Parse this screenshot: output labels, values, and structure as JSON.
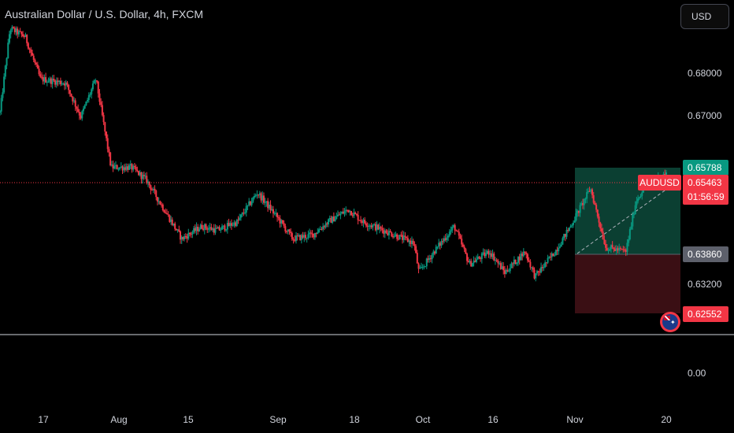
{
  "header": {
    "title": "Australian Dollar / U.S. Dollar, 4h, FXCM"
  },
  "currency_button": {
    "label": "USD"
  },
  "price_axis": {
    "labels": [
      {
        "text": "0.68000",
        "value": 0.68
      },
      {
        "text": "0.67000",
        "value": 0.67
      },
      {
        "text": "0.63200",
        "value": 0.632
      },
      {
        "text": "0.00",
        "value": 0.0
      }
    ]
  },
  "time_axis": {
    "labels": [
      {
        "text": "17"
      },
      {
        "text": "Aug"
      },
      {
        "text": "15"
      },
      {
        "text": "Sep"
      },
      {
        "text": "18"
      },
      {
        "text": "Oct"
      },
      {
        "text": "16"
      },
      {
        "text": "Nov"
      },
      {
        "text": "20"
      }
    ]
  },
  "position": {
    "take_profit": "0.65788",
    "entry": "0.63860",
    "stop_loss": "0.62552"
  },
  "current": {
    "symbol": "AUDUSD",
    "price": "0.65463",
    "countdown": "01:56:59"
  },
  "colors": {
    "up": "#089981",
    "down": "#f23645",
    "profit_zone": "#0b3f32",
    "loss_zone": "#3a0f14",
    "price_line": "#f23645"
  },
  "chart_data": {
    "type": "candlestick",
    "symbol": "AUDUSD",
    "interval": "4h",
    "ylim": [
      0.6228,
      0.692
    ],
    "path": [
      [
        "2023-07-12",
        0.669
      ],
      [
        "2023-07-14",
        0.689
      ],
      [
        "2023-07-17",
        0.687
      ],
      [
        "2023-07-20",
        0.677
      ],
      [
        "2023-07-25",
        0.676
      ],
      [
        "2023-07-28",
        0.668
      ],
      [
        "2023-07-31",
        0.677
      ],
      [
        "2023-08-03",
        0.656
      ],
      [
        "2023-08-07",
        0.656
      ],
      [
        "2023-08-10",
        0.653
      ],
      [
        "2023-08-14",
        0.645
      ],
      [
        "2023-08-17",
        0.639
      ],
      [
        "2023-08-21",
        0.642
      ],
      [
        "2023-08-24",
        0.641
      ],
      [
        "2023-08-28",
        0.643
      ],
      [
        "2023-09-01",
        0.65
      ],
      [
        "2023-09-05",
        0.644
      ],
      [
        "2023-09-08",
        0.639
      ],
      [
        "2023-09-12",
        0.64
      ],
      [
        "2023-09-15",
        0.643
      ],
      [
        "2023-09-19",
        0.646
      ],
      [
        "2023-09-22",
        0.643
      ],
      [
        "2023-09-26",
        0.641
      ],
      [
        "2023-10-02",
        0.638
      ],
      [
        "2023-10-03",
        0.631
      ],
      [
        "2023-10-06",
        0.636
      ],
      [
        "2023-10-10",
        0.642
      ],
      [
        "2023-10-13",
        0.633
      ],
      [
        "2023-10-17",
        0.636
      ],
      [
        "2023-10-20",
        0.631
      ],
      [
        "2023-10-24",
        0.636
      ],
      [
        "2023-10-26",
        0.63
      ],
      [
        "2023-10-30",
        0.636
      ],
      [
        "2023-11-02",
        0.642
      ],
      [
        "2023-11-06",
        0.651
      ],
      [
        "2023-11-09",
        0.637
      ],
      [
        "2023-11-13",
        0.636
      ],
      [
        "2023-11-15",
        0.648
      ],
      [
        "2023-11-17",
        0.652
      ],
      [
        "2023-11-21",
        0.6546
      ]
    ]
  }
}
